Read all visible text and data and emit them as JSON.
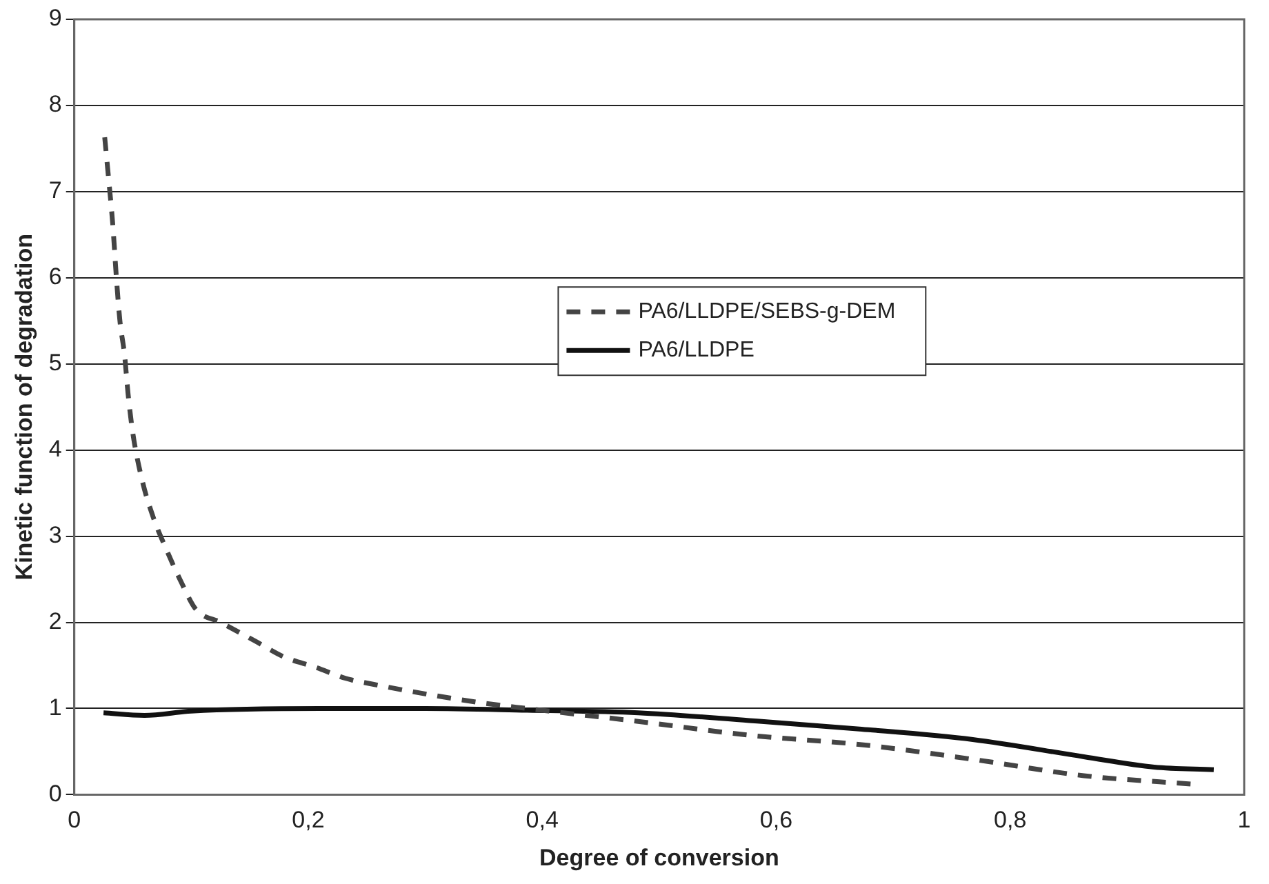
{
  "chart_data": {
    "type": "line",
    "xlabel": "Degree of conversion",
    "ylabel": "Kinetic function of degradation",
    "xlim": [
      0,
      1
    ],
    "xticks": [
      0,
      {
        "value": 0.2,
        "label": "0,2"
      },
      {
        "value": 0.4,
        "label": "0,4"
      },
      {
        "value": 0.6,
        "label": "0,6"
      },
      {
        "value": 0.8,
        "label": "0,8"
      },
      1
    ],
    "ylim": [
      0,
      9
    ],
    "yticks": [
      0,
      1,
      2,
      3,
      4,
      5,
      6,
      7,
      8,
      9
    ],
    "grid": "y",
    "legend": "center",
    "marker": "none",
    "series": [
      {
        "name": "PA6/LLDPE/SEBS-g-DEM",
        "color": "#444444",
        "line_style": "dashed",
        "x": [
          0.026,
          0.029,
          0.033,
          0.036,
          0.039,
          0.043,
          0.046,
          0.05,
          0.058,
          0.068,
          0.077,
          0.092,
          0.104,
          0.125,
          0.155,
          0.179,
          0.206,
          0.232,
          0.256,
          0.304,
          0.351,
          0.387,
          0.482,
          0.577,
          0.673,
          0.768,
          0.863,
          0.958
        ],
        "values": [
          7.63,
          7.2,
          6.6,
          6.0,
          5.5,
          5.1,
          4.65,
          4.2,
          3.65,
          3.2,
          2.9,
          2.45,
          2.15,
          2.0,
          1.78,
          1.6,
          1.48,
          1.35,
          1.28,
          1.16,
          1.06,
          1.0,
          0.85,
          0.69,
          0.58,
          0.41,
          0.22,
          0.12
        ]
      },
      {
        "name": "PA6/LLDPE",
        "color": "#111111",
        "line_style": "solid",
        "x": [
          0.025,
          0.06,
          0.1,
          0.21,
          0.3,
          0.387,
          0.482,
          0.577,
          0.673,
          0.768,
          0.863,
          0.923,
          0.974
        ],
        "values": [
          0.95,
          0.92,
          0.97,
          1.0,
          1.0,
          0.98,
          0.95,
          0.86,
          0.76,
          0.64,
          0.44,
          0.32,
          0.29
        ]
      }
    ]
  }
}
